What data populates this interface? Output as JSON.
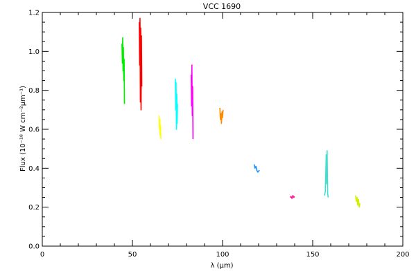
{
  "chart_data": {
    "type": "line",
    "title": "VCC 1690",
    "xlabel": "λ (μm)",
    "ylabel": "Flux (10⁻¹⁸ W cm⁻²μm⁻¹)",
    "xlim": [
      0,
      200
    ],
    "ylim": [
      0.0,
      1.2
    ],
    "xticks": [
      "0",
      "50",
      "100",
      "150",
      "200"
    ],
    "yticks": [
      "0.0",
      "0.2",
      "0.4",
      "0.6",
      "0.8",
      "1.0",
      "1.2"
    ],
    "grid": false,
    "legend": "none",
    "series": [
      {
        "color": "#00ee00",
        "x": [
          44.2,
          44.4,
          44.6,
          44.8,
          45.0,
          45.2,
          45.4,
          45.6
        ],
        "y": [
          1.04,
          0.94,
          1.07,
          0.9,
          1.02,
          0.85,
          0.96,
          0.73
        ]
      },
      {
        "color": "#ff0000",
        "x": [
          53.8,
          54.0,
          54.2,
          54.4,
          54.6,
          54.8,
          55.0,
          55.2
        ],
        "y": [
          1.15,
          0.93,
          1.17,
          0.74,
          1.12,
          0.7,
          1.08,
          0.82
        ]
      },
      {
        "color": "#ffff00",
        "x": [
          64.8,
          65.0,
          65.2,
          65.4,
          65.6,
          65.8
        ],
        "y": [
          0.67,
          0.6,
          0.65,
          0.57,
          0.62,
          0.55
        ]
      },
      {
        "color": "#00ffff",
        "x": [
          73.8,
          74.0,
          74.2,
          74.4,
          74.6,
          74.8,
          75.0
        ],
        "y": [
          0.86,
          0.7,
          0.84,
          0.6,
          0.78,
          0.63,
          0.73
        ]
      },
      {
        "color": "#ff00ff",
        "x": [
          82.6,
          82.8,
          83.0,
          83.2,
          83.4,
          83.6
        ],
        "y": [
          0.88,
          0.72,
          0.93,
          0.67,
          0.82,
          0.55
        ]
      },
      {
        "color": "#ff8c00",
        "x": [
          98.5,
          98.8,
          99.1,
          99.4,
          99.7,
          100.0,
          100.3
        ],
        "y": [
          0.71,
          0.65,
          0.68,
          0.63,
          0.69,
          0.66,
          0.7
        ]
      },
      {
        "color": "#1e8fff",
        "x": [
          117.5,
          118.0,
          118.5,
          119.0,
          119.5,
          120.0,
          120.5
        ],
        "y": [
          0.42,
          0.4,
          0.41,
          0.39,
          0.38,
          0.385,
          0.39
        ]
      },
      {
        "color": "#ff1493",
        "x": [
          137.5,
          138.0,
          138.5,
          139.0,
          139.5,
          140.0
        ],
        "y": [
          0.25,
          0.255,
          0.245,
          0.26,
          0.25,
          0.255
        ]
      },
      {
        "color": "#40e0d0",
        "x": [
          156.5,
          157.0,
          157.5,
          157.8,
          158.0,
          158.3,
          158.6
        ],
        "y": [
          0.26,
          0.28,
          0.47,
          0.32,
          0.49,
          0.27,
          0.25
        ]
      },
      {
        "color": "#d4f000",
        "x": [
          173.8,
          174.2,
          174.6,
          175.0,
          175.4,
          175.8,
          176.2
        ],
        "y": [
          0.26,
          0.23,
          0.25,
          0.21,
          0.24,
          0.2,
          0.22
        ]
      }
    ]
  }
}
